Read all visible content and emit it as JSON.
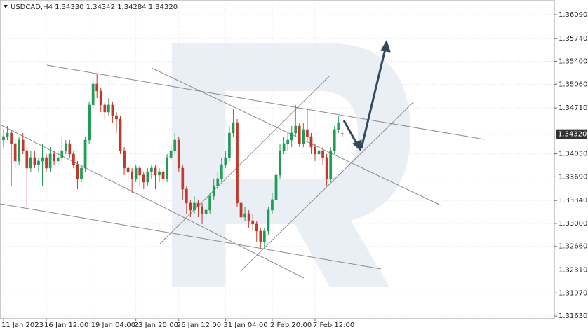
{
  "chart_data": {
    "type": "candlestick",
    "title": "USDCAD,H4  1.34330 1.34342 1.34284 1.34320",
    "categories": [
      "11 Jan 2023",
      null,
      null,
      null,
      null,
      null,
      null,
      null,
      null,
      null,
      null,
      "16 Jan 12:00",
      null,
      null,
      null,
      null,
      null,
      null,
      null,
      null,
      null,
      null,
      null,
      "19 Jan 04:00",
      null,
      null,
      null,
      null,
      null,
      null,
      null,
      null,
      null,
      null,
      "23 Jan 20:00",
      null,
      null,
      null,
      null,
      null,
      null,
      null,
      null,
      null,
      null,
      "26 Jan 12:00",
      null,
      null,
      null,
      null,
      null,
      null,
      null,
      null,
      null,
      null,
      null,
      "31 Jan 04:00",
      null,
      null,
      null,
      null,
      null,
      null,
      null,
      null,
      null,
      null,
      null,
      "2 Feb 20:00",
      null,
      null,
      null,
      null,
      null,
      null,
      null,
      null,
      null,
      null,
      "7 Feb 12:00",
      null,
      null,
      null,
      null,
      null,
      null,
      null
    ],
    "open": [
      1.34234,
      1.34286,
      1.34338,
      1.34182,
      1.33923,
      1.34234,
      1.34078,
      1.33819,
      1.33975,
      1.33871,
      1.33923,
      1.33975,
      1.33819,
      1.34027,
      1.33923,
      1.33975,
      1.34078,
      1.34182,
      1.34027,
      1.33871,
      1.33664,
      1.33819,
      1.34234,
      1.34753,
      1.35064,
      1.3496,
      1.34753,
      1.34649,
      1.34753,
      1.34597,
      1.34545,
      1.34078,
      1.33819,
      1.33767,
      1.33664,
      1.33819,
      1.33716,
      1.33612,
      1.33767,
      1.33819,
      1.33716,
      1.33767,
      1.33664,
      1.33975,
      1.34078,
      1.34234,
      1.33819,
      1.33508,
      1.33301,
      1.33197,
      1.33301,
      1.33249,
      1.33145,
      1.33197,
      1.33404,
      1.3356,
      1.33664,
      1.33871,
      1.33975,
      1.34338,
      1.34493,
      1.33301,
      1.33093,
      1.33145,
      1.33041,
      1.3299,
      1.32886,
      1.3273,
      1.32886,
      1.33197,
      1.33353,
      1.33716,
      1.34078,
      1.34182,
      1.34234,
      1.34338,
      1.34441,
      1.34182,
      1.3439,
      1.34286,
      1.3413,
      1.34027,
      1.34078,
      1.33975,
      1.33664,
      1.34078,
      1.3439,
      1.3433
    ],
    "high": [
      1.3439,
      1.34441,
      1.3439,
      1.34234,
      1.34286,
      1.34338,
      1.3413,
      1.34078,
      1.34078,
      1.33975,
      1.34182,
      1.34027,
      1.3413,
      1.34078,
      1.34078,
      1.34286,
      1.34234,
      1.34234,
      1.34078,
      1.33923,
      1.33871,
      1.34286,
      1.34804,
      1.35167,
      1.35219,
      1.35012,
      1.34804,
      1.34856,
      1.34804,
      1.34649,
      1.34597,
      1.3413,
      1.33871,
      1.33819,
      1.33871,
      1.33871,
      1.33767,
      1.33819,
      1.33871,
      1.33871,
      1.33819,
      1.33819,
      1.34027,
      1.34182,
      1.34338,
      1.34286,
      1.33871,
      1.3356,
      1.33353,
      1.33404,
      1.33353,
      1.33301,
      1.33301,
      1.33456,
      1.33664,
      1.33767,
      1.33975,
      1.34078,
      1.34441,
      1.34701,
      1.34545,
      1.33353,
      1.33249,
      1.33197,
      1.33145,
      1.33041,
      1.32938,
      1.32938,
      1.33249,
      1.33456,
      1.33767,
      1.34182,
      1.34286,
      1.34338,
      1.34441,
      1.34753,
      1.34493,
      1.34493,
      1.34701,
      1.34338,
      1.34182,
      1.34182,
      1.3413,
      1.34027,
      1.3413,
      1.34441,
      1.34597,
      1.34342
    ],
    "low": [
      1.3413,
      1.34234,
      1.3356,
      1.33819,
      1.33871,
      1.34027,
      1.33249,
      1.33767,
      1.33819,
      1.33767,
      1.3356,
      1.33767,
      1.33767,
      1.33871,
      1.33871,
      1.33923,
      1.34027,
      1.33975,
      1.33819,
      1.33508,
      1.33612,
      1.33767,
      1.34182,
      1.34701,
      1.34856,
      1.34649,
      1.34545,
      1.34597,
      1.34493,
      1.34338,
      1.34027,
      1.33716,
      1.33612,
      1.33456,
      1.33612,
      1.3356,
      1.33508,
      1.3356,
      1.33664,
      1.33508,
      1.33612,
      1.33404,
      1.33612,
      1.33923,
      1.34027,
      1.33767,
      1.33353,
      1.33145,
      1.33093,
      1.33145,
      1.33093,
      1.3299,
      1.33093,
      1.33145,
      1.33353,
      1.33508,
      1.33612,
      1.33819,
      1.33923,
      1.34286,
      1.33249,
      1.3299,
      1.33041,
      1.32938,
      1.32886,
      1.3273,
      1.32627,
      1.32627,
      1.32834,
      1.33145,
      1.33301,
      1.33664,
      1.34027,
      1.34078,
      1.3413,
      1.34286,
      1.3413,
      1.3413,
      1.34234,
      1.34027,
      1.33923,
      1.33871,
      1.33871,
      1.3356,
      1.33612,
      1.34027,
      1.34338,
      1.34284
    ],
    "close": [
      1.34286,
      1.34338,
      1.34182,
      1.33923,
      1.34234,
      1.34078,
      1.33819,
      1.33975,
      1.33871,
      1.33923,
      1.33975,
      1.33819,
      1.34027,
      1.33923,
      1.33975,
      1.34078,
      1.34182,
      1.34027,
      1.33871,
      1.33664,
      1.33819,
      1.34234,
      1.34753,
      1.35064,
      1.3496,
      1.34753,
      1.34649,
      1.34753,
      1.34597,
      1.34545,
      1.34078,
      1.33819,
      1.33767,
      1.33664,
      1.33819,
      1.33716,
      1.33612,
      1.33767,
      1.33819,
      1.33716,
      1.33767,
      1.33664,
      1.33975,
      1.34078,
      1.34234,
      1.33819,
      1.33508,
      1.33301,
      1.33197,
      1.33301,
      1.33249,
      1.33145,
      1.33197,
      1.33404,
      1.3356,
      1.33664,
      1.33871,
      1.33975,
      1.34338,
      1.34493,
      1.33301,
      1.33093,
      1.33145,
      1.33041,
      1.3299,
      1.32886,
      1.3273,
      1.32886,
      1.33197,
      1.33353,
      1.33716,
      1.34078,
      1.34182,
      1.34234,
      1.34338,
      1.34441,
      1.34182,
      1.3439,
      1.34286,
      1.3413,
      1.34027,
      1.34078,
      1.33975,
      1.33664,
      1.34078,
      1.3439,
      1.34493,
      1.3432
    ],
    "up_color": "#1f9d55",
    "down_color": "#c0392b",
    "ylim": [
      1.31589,
      1.36308
    ],
    "yticks": [
      {
        "value": 1.3609,
        "label": "1.36090"
      },
      {
        "value": 1.3574,
        "label": "1.35740"
      },
      {
        "value": 1.354,
        "label": "1.35400"
      },
      {
        "value": 1.3506,
        "label": "1.35060"
      },
      {
        "value": 1.3471,
        "label": "1.34710"
      },
      {
        "value": 1.3403,
        "label": "1.34030"
      },
      {
        "value": 1.3369,
        "label": "1.33690"
      },
      {
        "value": 1.3334,
        "label": "1.33340"
      },
      {
        "value": 1.33,
        "label": "1.33000"
      },
      {
        "value": 1.3266,
        "label": "1.32660"
      },
      {
        "value": 1.3231,
        "label": "1.32310"
      },
      {
        "value": 1.3197,
        "label": "1.31970"
      },
      {
        "value": 1.3163,
        "label": "1.31630"
      }
    ],
    "last_price": {
      "value": 1.3432,
      "label": "1.34320"
    },
    "grid": true
  }
}
